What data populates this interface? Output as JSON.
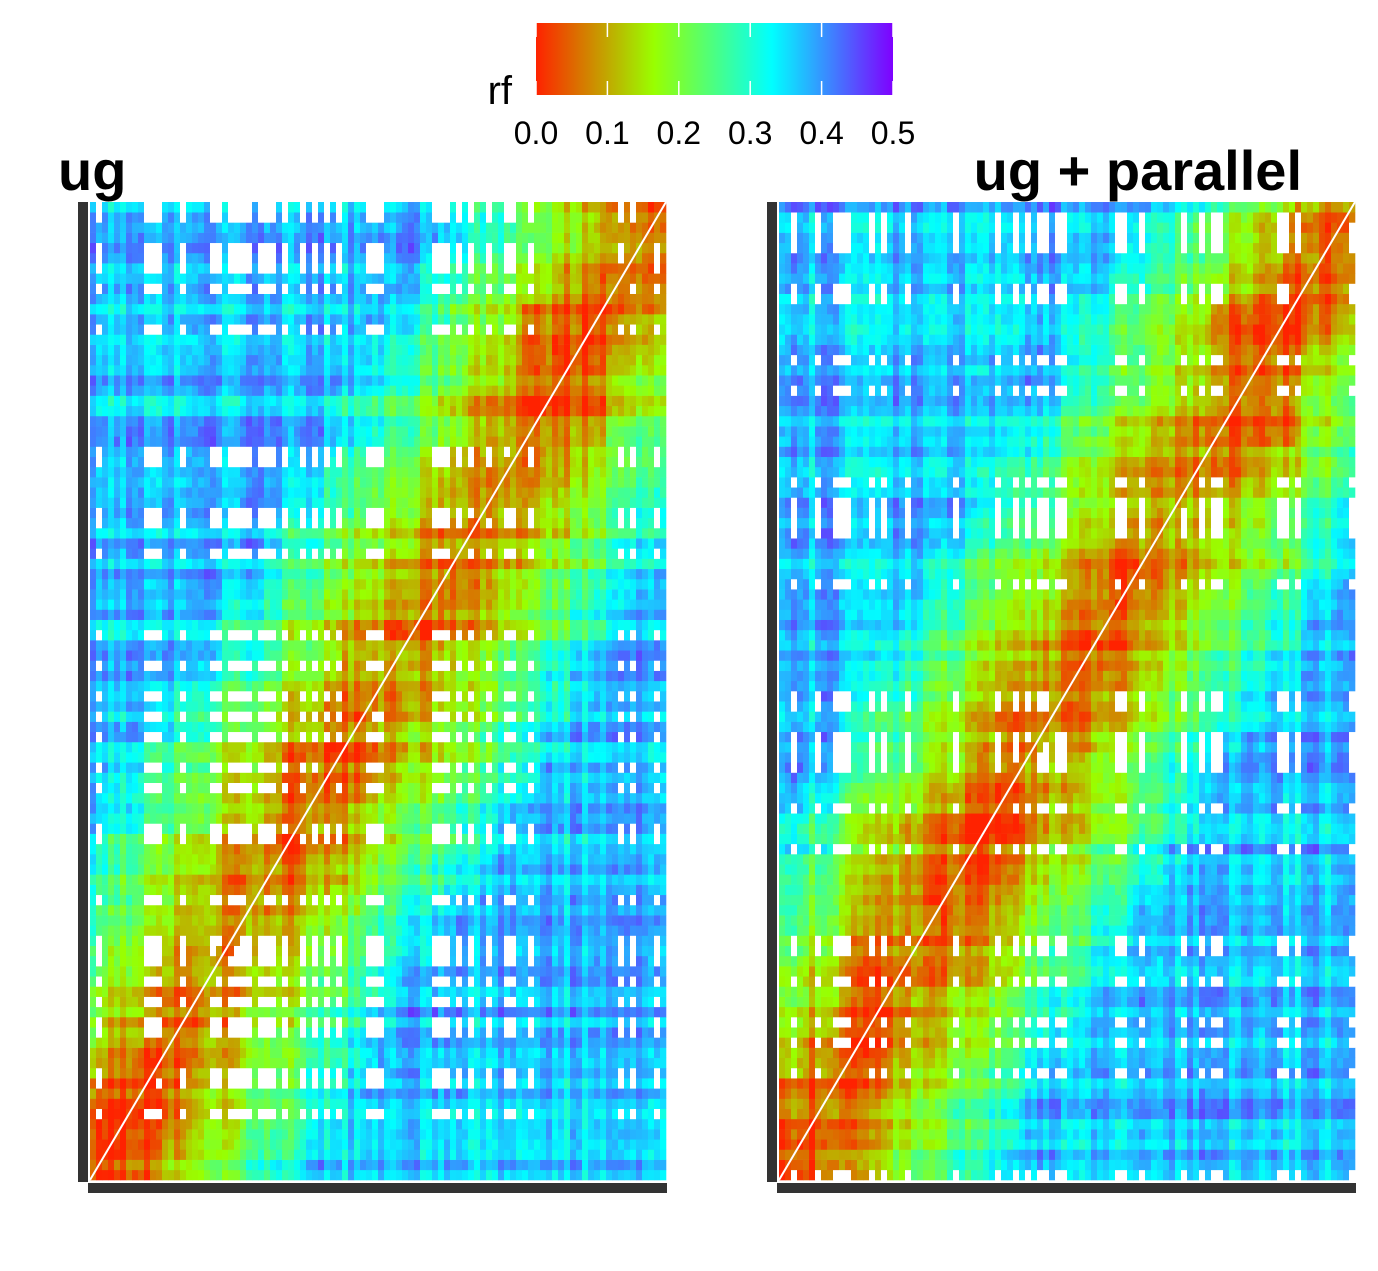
{
  "chart_data": [
    {
      "type": "heatmap",
      "title": "ug",
      "xlabel": "",
      "ylabel": "",
      "value_range": [
        0,
        0.5
      ],
      "diagonal": "bottom-left to top-right",
      "missing_cells": "white",
      "blocks": [
        {
          "from": 0.0,
          "to": 0.1,
          "mean_rf": 0.03
        },
        {
          "from": 0.1,
          "to": 0.18,
          "mean_rf": 0.05
        },
        {
          "from": 0.18,
          "to": 0.28,
          "mean_rf": 0.07
        },
        {
          "from": 0.28,
          "to": 0.34,
          "mean_rf": 0.06
        },
        {
          "from": 0.34,
          "to": 0.44,
          "mean_rf": 0.05
        },
        {
          "from": 0.44,
          "to": 0.55,
          "mean_rf": 0.06
        },
        {
          "from": 0.55,
          "to": 0.62,
          "mean_rf": 0.05
        },
        {
          "from": 0.62,
          "to": 0.75,
          "mean_rf": 0.07
        },
        {
          "from": 0.75,
          "to": 0.9,
          "mean_rf": 0.03
        },
        {
          "from": 0.9,
          "to": 1.0,
          "mean_rf": 0.04
        }
      ],
      "background_rf": 0.35
    },
    {
      "type": "heatmap",
      "title": "ug + parallel",
      "xlabel": "",
      "ylabel": "",
      "value_range": [
        0,
        0.5
      ],
      "diagonal": "bottom-left to top-right",
      "missing_cells": "white",
      "blocks": [
        {
          "from": 0.0,
          "to": 0.1,
          "mean_rf": 0.03
        },
        {
          "from": 0.1,
          "to": 0.18,
          "mean_rf": 0.05
        },
        {
          "from": 0.18,
          "to": 0.28,
          "mean_rf": 0.07
        },
        {
          "from": 0.28,
          "to": 0.34,
          "mean_rf": 0.06
        },
        {
          "from": 0.34,
          "to": 0.44,
          "mean_rf": 0.05
        },
        {
          "from": 0.44,
          "to": 0.55,
          "mean_rf": 0.06
        },
        {
          "from": 0.55,
          "to": 0.62,
          "mean_rf": 0.05
        },
        {
          "from": 0.62,
          "to": 0.75,
          "mean_rf": 0.07
        },
        {
          "from": 0.75,
          "to": 0.9,
          "mean_rf": 0.03
        },
        {
          "from": 0.9,
          "to": 1.0,
          "mean_rf": 0.04
        }
      ],
      "background_rf": 0.35
    }
  ],
  "legend": {
    "title": "rf",
    "placement": "top-center",
    "orientation": "horizontal",
    "range": [
      0,
      0.5
    ],
    "ticks": [
      "0.0",
      "0.1",
      "0.2",
      "0.3",
      "0.4",
      "0.5"
    ],
    "colors": [
      "#ff0000",
      "#a6ff00",
      "#00ffff",
      "#8000ff"
    ]
  }
}
